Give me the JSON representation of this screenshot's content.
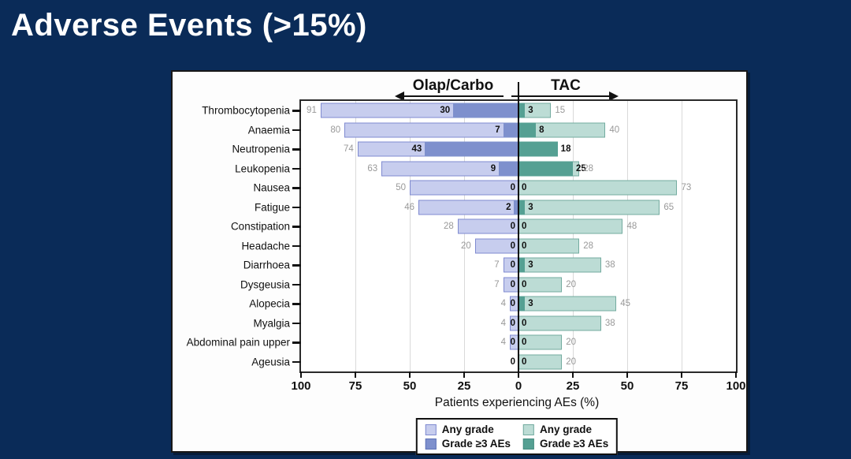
{
  "slide": {
    "title": "Adverse Events (>15%)"
  },
  "colors": {
    "background": "#0a2b58",
    "title_text": "#ffffff",
    "panel_bg": "#fdfdfd",
    "any_label_text": "#999999",
    "g3_label_text": "#111111"
  },
  "chart_data": {
    "type": "bar",
    "variant": "diverging butterfly / tornado plot, two treatment arms mirrored around zero",
    "xlabel": "Patients experiencing AEs (%)",
    "xlim": 100,
    "x_ticks": [
      "100",
      "75",
      "50",
      "25",
      "0",
      "25",
      "50",
      "75",
      "100"
    ],
    "grid_interval": 25,
    "groups": {
      "left": "Olap/Carbo",
      "right": "TAC"
    },
    "legend": {
      "left": [
        {
          "label": "Any grade",
          "fill": "#c7cdee",
          "border": "#7f8ad0"
        },
        {
          "label": "Grade ≥3 AEs",
          "fill": "#7e90cd",
          "border": "#5d72b8"
        }
      ],
      "right": [
        {
          "label": "Any grade",
          "fill": "#bcdcd5",
          "border": "#73ab9f"
        },
        {
          "label": "Grade ≥3 AEs",
          "fill": "#55a093",
          "border": "#458c80"
        }
      ]
    },
    "rows": [
      {
        "label": "Thrombocytopenia",
        "left_any": 91,
        "left_g3": 30,
        "right_g3": 3,
        "right_any": 15
      },
      {
        "label": "Anaemia",
        "left_any": 80,
        "left_g3": 7,
        "right_g3": 8,
        "right_any": 40
      },
      {
        "label": "Neutropenia",
        "left_any": 74,
        "left_g3": 43,
        "right_g3": 18,
        "right_any": 18,
        "right_any_label": ""
      },
      {
        "label": "Leukopenia",
        "left_any": 63,
        "left_g3": 9,
        "right_g3": 25,
        "right_any": 28
      },
      {
        "label": "Nausea",
        "left_any": 50,
        "left_g3": 0,
        "right_g3": 0,
        "right_any": 73
      },
      {
        "label": "Fatigue",
        "left_any": 46,
        "left_g3": 2,
        "right_g3": 3,
        "right_any": 65
      },
      {
        "label": "Constipation",
        "left_any": 28,
        "left_g3": 0,
        "right_g3": 0,
        "right_any": 48
      },
      {
        "label": "Headache",
        "left_any": 20,
        "left_g3": 0,
        "right_g3": 0,
        "right_any": 28
      },
      {
        "label": "Diarrhoea",
        "left_any": 7,
        "left_g3": 0,
        "right_g3": 3,
        "right_any": 38
      },
      {
        "label": "Dysgeusia",
        "left_any": 7,
        "left_g3": 0,
        "right_g3": 0,
        "right_any": 20
      },
      {
        "label": "Alopecia",
        "left_any": 4,
        "left_g3": 0,
        "right_g3": 3,
        "right_any": 45
      },
      {
        "label": "Myalgia",
        "left_any": 4,
        "left_g3": 0,
        "right_g3": 0,
        "right_any": 38
      },
      {
        "label": "Abdominal pain upper",
        "left_any": 4,
        "left_g3": 0,
        "right_g3": 0,
        "right_any": 20
      },
      {
        "label": "Ageusia",
        "left_any": 0,
        "left_g3": 0,
        "right_g3": 0,
        "right_any": 20,
        "left_any_label": ""
      }
    ]
  }
}
